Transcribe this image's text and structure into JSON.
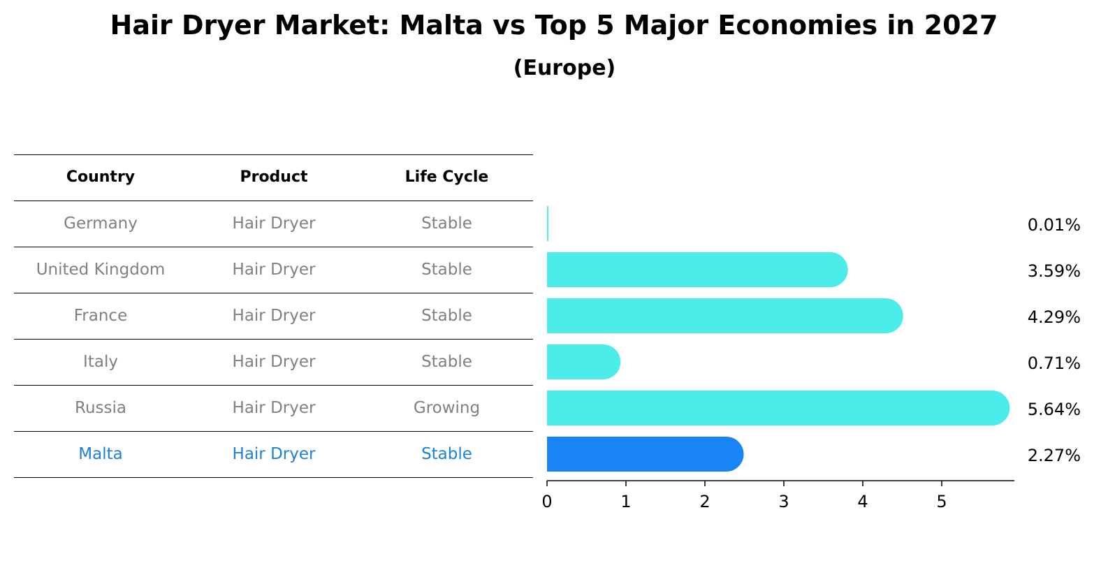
{
  "title": "Hair Dryer Market: Malta vs Top 5 Major Economies in 2027",
  "subtitle": "(Europe)",
  "table": {
    "headers": [
      "Country",
      "Product",
      "Life Cycle"
    ],
    "rows": [
      [
        "Germany",
        "Hair Dryer",
        "Stable"
      ],
      [
        "United Kingdom",
        "Hair Dryer",
        "Stable"
      ],
      [
        "France",
        "Hair Dryer",
        "Stable"
      ],
      [
        "Italy",
        "Hair Dryer",
        "Stable"
      ],
      [
        "Russia",
        "Hair Dryer",
        "Growing"
      ],
      [
        "Malta",
        "Hair Dryer",
        "Stable"
      ]
    ]
  },
  "colors": {
    "bar": "#4bedea",
    "highlight": "#1984f4",
    "highlight_text": "#1e7fd6",
    "muted_text": "#808080"
  },
  "chart_data": {
    "type": "bar",
    "orientation": "horizontal",
    "categories": [
      "Germany",
      "United Kingdom",
      "France",
      "Italy",
      "Russia",
      "Malta"
    ],
    "values": [
      0.01,
      3.59,
      4.29,
      0.71,
      5.64,
      2.27
    ],
    "labels": [
      "0.01%",
      "3.59%",
      "4.29%",
      "0.71%",
      "5.64%",
      "2.27%"
    ],
    "highlight": "Malta",
    "xticks": [
      0,
      1,
      2,
      3,
      4,
      5
    ],
    "xlim": [
      0,
      5.93
    ],
    "title": "Hair Dryer Market: Malta vs Top 5 Major Economies in 2027",
    "subtitle": "(Europe)"
  }
}
